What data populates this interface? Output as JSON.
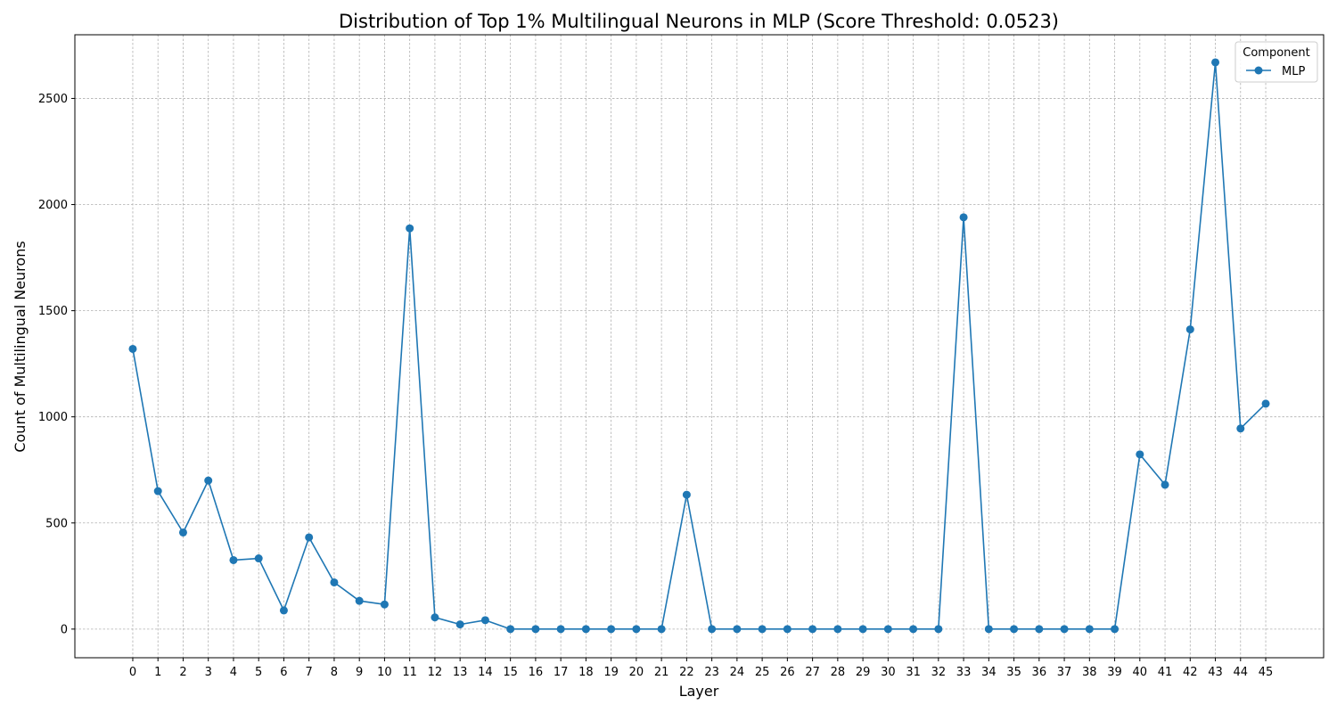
{
  "chart_data": {
    "type": "line",
    "title": "Distribution of Top 1% Multilingual Neurons in MLP (Score Threshold: 0.0523)",
    "xlabel": "Layer",
    "ylabel": "Count of Multilingual Neurons",
    "x": [
      0,
      1,
      2,
      3,
      4,
      5,
      6,
      7,
      8,
      9,
      10,
      11,
      12,
      13,
      14,
      15,
      16,
      17,
      18,
      19,
      20,
      21,
      22,
      23,
      24,
      25,
      26,
      27,
      28,
      29,
      30,
      31,
      32,
      33,
      34,
      35,
      36,
      37,
      38,
      39,
      40,
      41,
      42,
      43,
      44,
      45
    ],
    "xlim": [
      -2.3,
      47.3
    ],
    "ylim": [
      -135,
      2800
    ],
    "yticks": [
      0,
      500,
      1000,
      1500,
      2000,
      2500
    ],
    "grid": true,
    "legend": {
      "title": "Component",
      "placement": "top-right"
    },
    "series": [
      {
        "name": "MLP",
        "color": "#1f77b4",
        "values": [
          1320,
          650,
          455,
          700,
          325,
          333,
          88,
          432,
          220,
          133,
          116,
          1888,
          55,
          22,
          42,
          0,
          0,
          0,
          0,
          0,
          0,
          0,
          633,
          0,
          0,
          0,
          0,
          0,
          0,
          0,
          0,
          0,
          0,
          1940,
          0,
          0,
          0,
          0,
          0,
          0,
          823,
          680,
          1412,
          2670,
          945,
          1062
        ]
      }
    ]
  }
}
